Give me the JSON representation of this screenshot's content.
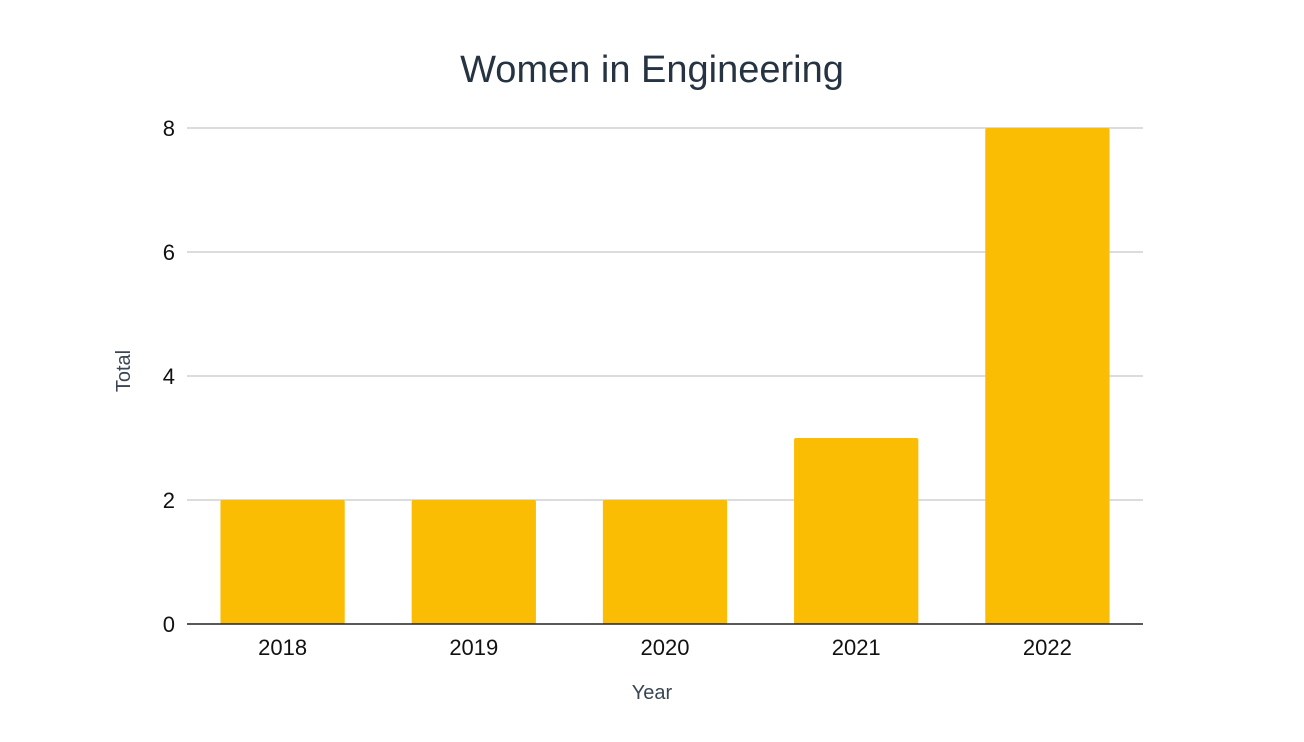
{
  "chart_data": {
    "type": "bar",
    "title": "Women in Engineering",
    "xlabel": "Year",
    "ylabel": "Total",
    "categories": [
      "2018",
      "2019",
      "2020",
      "2021",
      "2022"
    ],
    "values": [
      2,
      2,
      2,
      3,
      8
    ],
    "ylim": [
      0,
      8
    ],
    "yticks": [
      "0",
      "2",
      "4",
      "6",
      "8"
    ],
    "grid": true,
    "legend": "none",
    "colors": {
      "bar": "#FBBC04",
      "grid": "#C8C8C8",
      "axis": "#222222",
      "title": "#253342"
    }
  }
}
